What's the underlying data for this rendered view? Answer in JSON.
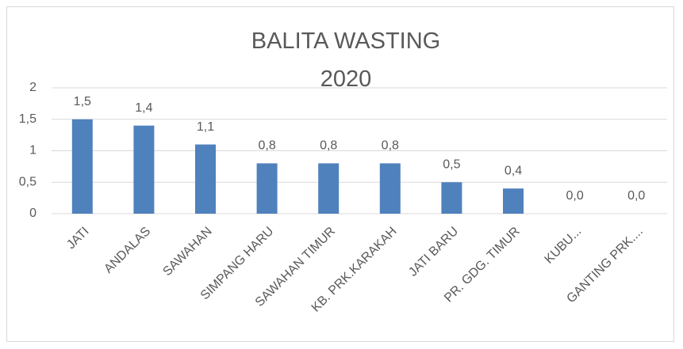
{
  "chart_data": {
    "type": "bar",
    "title": "BALITA WASTING 2020",
    "categories": [
      "JATI",
      "ANDALAS",
      "SAWAHAN",
      "SIMPANG HARU",
      "SAWAHAN TIMUR",
      "KB. PRK.KARAKAH",
      "JATI BARU",
      "PR. GDG. TIMUR",
      "KUBU...",
      "GANTING PRK...."
    ],
    "values": [
      1.5,
      1.4,
      1.1,
      0.8,
      0.8,
      0.8,
      0.5,
      0.4,
      0.0,
      0.0
    ],
    "value_labels": [
      "1,5",
      "1,4",
      "1,1",
      "0,8",
      "0,8",
      "0,8",
      "0,5",
      "0,4",
      "0,0",
      "0,0"
    ],
    "color": "#4f81bd",
    "ylim": [
      0,
      2
    ],
    "yticks": [
      0,
      {
        "value": 0.5,
        "label": "0,5"
      },
      1,
      {
        "value": 1.5,
        "label": "1,5"
      },
      2
    ],
    "grid": true
  }
}
